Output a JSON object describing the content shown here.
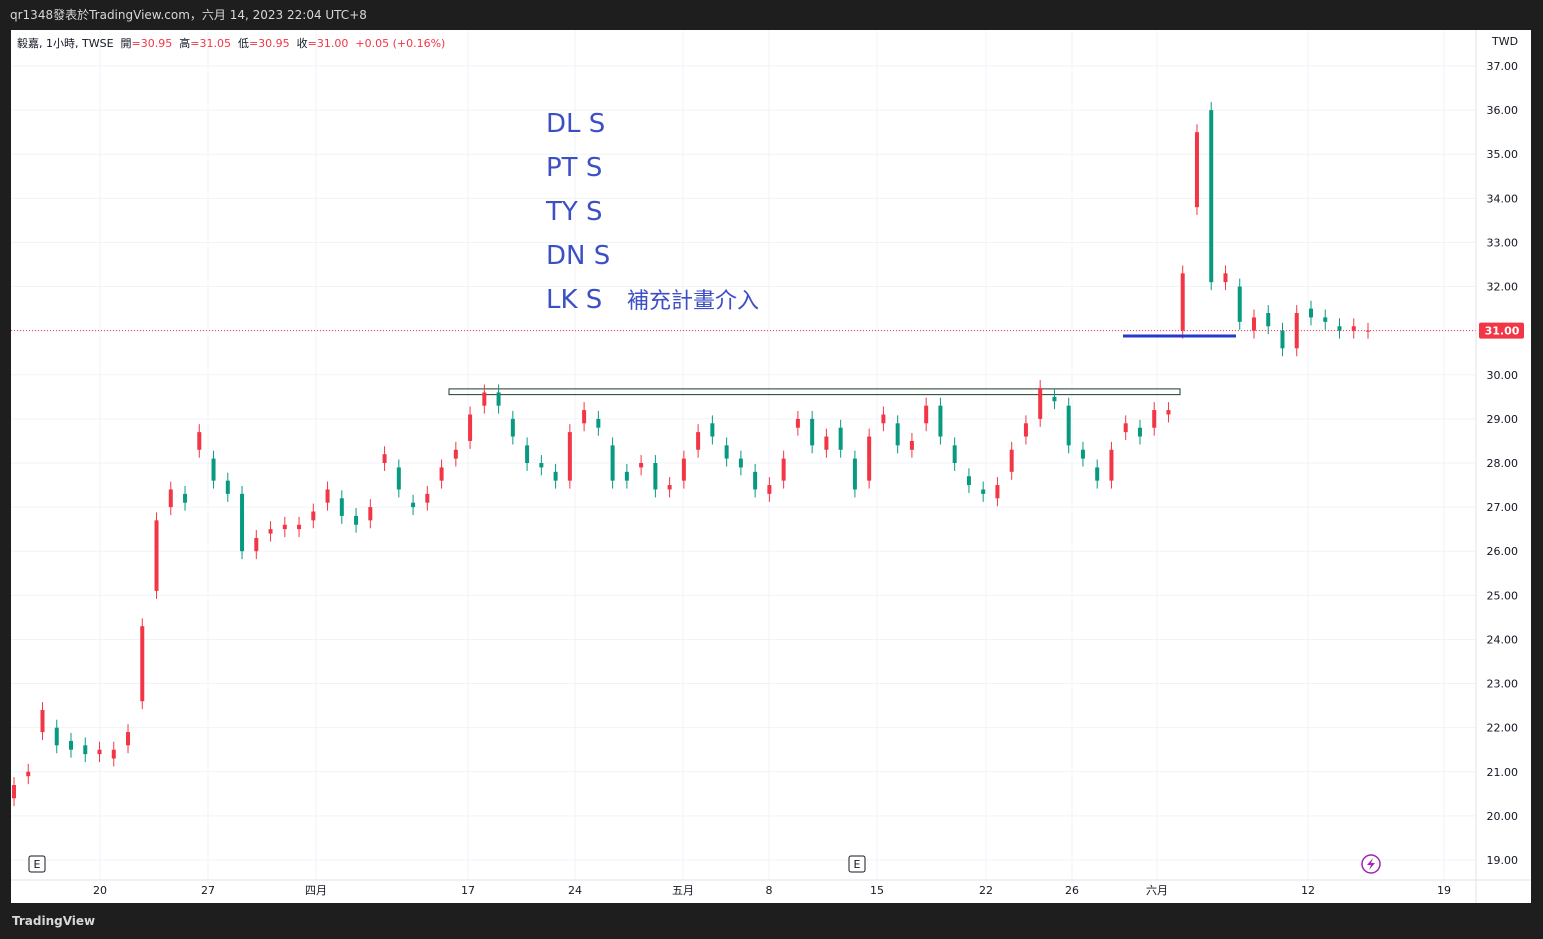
{
  "header": {
    "title": "qr1348發表於TradingView.com，六月 14, 2023 22:04 UTC+8"
  },
  "legend": {
    "symbol": "毅嘉, 1小時, TWSE",
    "open_label": "開",
    "open": "=30.95",
    "high_label": "高",
    "high": "=31.05",
    "low_label": "低",
    "low": "=30.95",
    "close_label": "收",
    "close": "=31.00",
    "change": "+0.05 (+0.16%)"
  },
  "currency": "TWD",
  "price_tag": "31.00",
  "footer": {
    "logo": "TradingView"
  },
  "colors": {
    "up": "#f23645",
    "down": "#089981",
    "annotation": "#3d4fc4",
    "price_line": "#f23645",
    "support_line": "#2a38c8"
  },
  "icons": {
    "earnings": "E",
    "flash": "flash-icon"
  },
  "annotations": [
    "DL S",
    "PT S",
    "TY S",
    "DN S",
    "LK S",
    "補充計畫介入"
  ],
  "chart_data": {
    "type": "candlestick",
    "ylim": [
      18.8,
      37.3
    ],
    "y_ticks": [
      "19.00",
      "20.00",
      "21.00",
      "22.00",
      "23.00",
      "24.00",
      "25.00",
      "26.00",
      "27.00",
      "28.00",
      "29.00",
      "30.00",
      "31.00",
      "32.00",
      "33.00",
      "34.00",
      "35.00",
      "36.00",
      "37.00"
    ],
    "x_ticks": [
      "20",
      "27",
      "四月",
      "17",
      "24",
      "五月",
      "8",
      "15",
      "22",
      "26",
      "六月",
      "12",
      "19"
    ],
    "last_price": 31.0,
    "resistance_zone": [
      29.55,
      29.68
    ],
    "support_line": 30.88,
    "gridlines": true,
    "points": [
      [
        20.4,
        20.7
      ],
      [
        20.9,
        21.0
      ],
      [
        21.9,
        22.4
      ],
      [
        22.0,
        21.6
      ],
      [
        21.7,
        21.5
      ],
      [
        21.6,
        21.4
      ],
      [
        21.4,
        21.5
      ],
      [
        21.3,
        21.5
      ],
      [
        21.6,
        21.9
      ],
      [
        22.6,
        24.3
      ],
      [
        25.1,
        26.7
      ],
      [
        27.0,
        27.4
      ],
      [
        27.3,
        27.1
      ],
      [
        28.3,
        28.7
      ],
      [
        28.1,
        27.6
      ],
      [
        27.6,
        27.3
      ],
      [
        27.3,
        26.0
      ],
      [
        26.0,
        26.3
      ],
      [
        26.4,
        26.5
      ],
      [
        26.5,
        26.6
      ],
      [
        26.5,
        26.6
      ],
      [
        26.7,
        26.9
      ],
      [
        27.1,
        27.4
      ],
      [
        27.2,
        26.8
      ],
      [
        26.8,
        26.6
      ],
      [
        26.7,
        27.0
      ],
      [
        28.0,
        28.2
      ],
      [
        27.9,
        27.4
      ],
      [
        27.1,
        27.0
      ],
      [
        27.1,
        27.3
      ],
      [
        27.6,
        27.9
      ],
      [
        28.1,
        28.3
      ],
      [
        28.5,
        29.1
      ],
      [
        29.3,
        29.6
      ],
      [
        29.6,
        29.3
      ],
      [
        29.0,
        28.6
      ],
      [
        28.4,
        28.0
      ],
      [
        28.0,
        27.9
      ],
      [
        27.8,
        27.6
      ],
      [
        27.6,
        28.7
      ],
      [
        28.9,
        29.2
      ],
      [
        29.0,
        28.8
      ],
      [
        28.4,
        27.6
      ],
      [
        27.8,
        27.6
      ],
      [
        27.9,
        28.0
      ],
      [
        28.0,
        27.4
      ],
      [
        27.4,
        27.5
      ],
      [
        27.6,
        28.1
      ],
      [
        28.3,
        28.7
      ],
      [
        28.9,
        28.6
      ],
      [
        28.4,
        28.1
      ],
      [
        28.1,
        27.9
      ],
      [
        27.8,
        27.4
      ],
      [
        27.3,
        27.5
      ],
      [
        27.6,
        28.1
      ],
      [
        28.8,
        29.0
      ],
      [
        29.0,
        28.4
      ],
      [
        28.3,
        28.6
      ],
      [
        28.8,
        28.3
      ],
      [
        28.1,
        27.4
      ],
      [
        27.6,
        28.6
      ],
      [
        28.9,
        29.1
      ],
      [
        28.9,
        28.4
      ],
      [
        28.3,
        28.5
      ],
      [
        28.9,
        29.3
      ],
      [
        29.3,
        28.6
      ],
      [
        28.4,
        28.0
      ],
      [
        27.7,
        27.5
      ],
      [
        27.4,
        27.3
      ],
      [
        27.2,
        27.5
      ],
      [
        27.8,
        28.3
      ],
      [
        28.6,
        28.9
      ],
      [
        29.0,
        29.7
      ],
      [
        29.5,
        29.4
      ],
      [
        29.3,
        28.4
      ],
      [
        28.3,
        28.1
      ],
      [
        27.9,
        27.6
      ],
      [
        27.6,
        28.3
      ],
      [
        28.7,
        28.9
      ],
      [
        28.8,
        28.6
      ],
      [
        28.8,
        29.2
      ],
      [
        29.1,
        29.2
      ],
      [
        31.0,
        32.3
      ],
      [
        33.8,
        35.5
      ],
      [
        36.0,
        32.1
      ],
      [
        32.1,
        32.3
      ],
      [
        32.0,
        31.2
      ],
      [
        31.0,
        31.3
      ],
      [
        31.4,
        31.1
      ],
      [
        31.0,
        30.6
      ],
      [
        30.6,
        31.4
      ],
      [
        31.5,
        31.3
      ],
      [
        31.3,
        31.2
      ],
      [
        31.1,
        31.0
      ],
      [
        31.0,
        31.1
      ],
      [
        31.0,
        31.0
      ]
    ]
  }
}
